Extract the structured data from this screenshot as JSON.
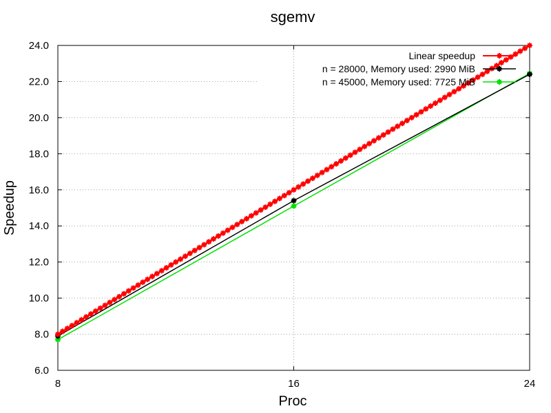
{
  "chart_data": {
    "type": "line",
    "title": "sgemv",
    "xlabel": "Proc",
    "ylabel": "Speedup",
    "xlim": [
      8,
      24
    ],
    "ylim": [
      6,
      24
    ],
    "xticks": [
      8,
      16,
      24
    ],
    "xtick_labels": [
      "8",
      "16",
      "24"
    ],
    "yticks": [
      6,
      8,
      10,
      12,
      14,
      16,
      18,
      20,
      22,
      24
    ],
    "ytick_labels": [
      "6.0",
      "8.0",
      "10.0",
      "12.0",
      "14.0",
      "16.0",
      "18.0",
      "20.0",
      "22.0",
      "24.0"
    ],
    "grid": true,
    "legend_position": "top-right",
    "series": [
      {
        "name": "Linear speedup",
        "color": "#ff0000",
        "marker": "star",
        "x": [
          8,
          24
        ],
        "y": [
          8,
          24
        ],
        "dense_markers": true
      },
      {
        "name": "n = 28000, Memory used: 2990 MiB",
        "color": "#000000",
        "marker": "star",
        "x": [
          8,
          16,
          24
        ],
        "y": [
          7.9,
          15.4,
          22.4
        ]
      },
      {
        "name": "n = 45000, Memory used: 7725 MiB",
        "color": "#00e000",
        "marker": "star",
        "x": [
          8,
          16,
          24
        ],
        "y": [
          7.7,
          15.1,
          22.45
        ]
      }
    ]
  }
}
